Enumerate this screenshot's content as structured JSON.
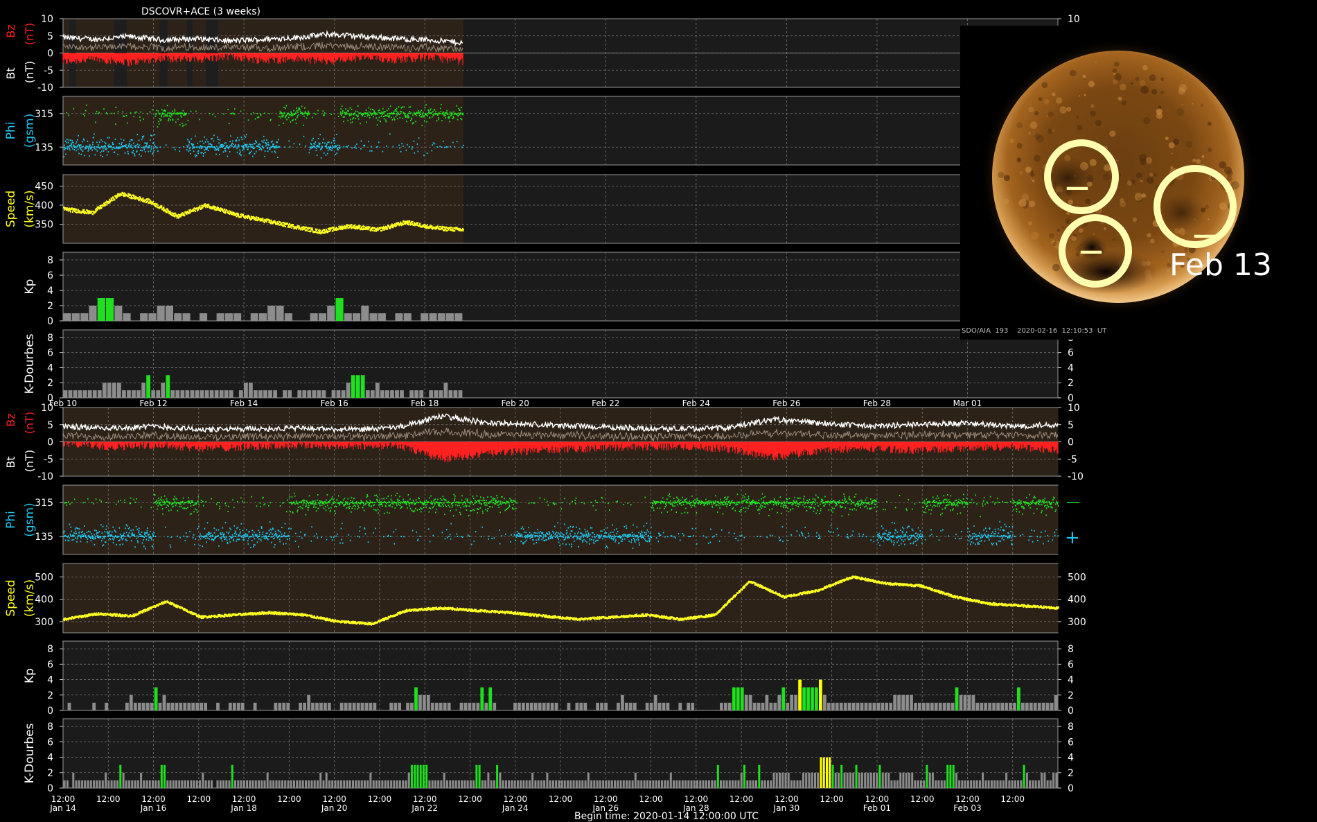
{
  "chart_data": [
    {
      "type": "line",
      "panel": "upper",
      "title": "DSCOVR+ACE (3 weeks)",
      "x_tick_labels": [
        "Feb 10",
        "Feb 12",
        "Feb 14",
        "Feb 16",
        "Feb 18",
        "Feb 20",
        "Feb 22",
        "Feb 24",
        "Feb 26",
        "Feb 28",
        "Mar 01"
      ],
      "x_range": [
        "2020-02-09",
        "2020-03-02"
      ],
      "data_end": "2020-02-16",
      "series_colors": {
        "bt": "#ffffff",
        "bz": "#ff2020",
        "phi_plus": "#1ec8f0",
        "phi_minus": "#20e020",
        "speed": "#ffff20",
        "kp_quiet": "#8c8c8c",
        "kp_active": "#1ee01e",
        "kp_storm": "#ffff00"
      },
      "bz_bt": {
        "ylabel_top": "Bz",
        "ylabel_top_unit": "(nT)",
        "ylabel_bottom": "Bt",
        "ylabel_bottom_unit": "(nT)",
        "ylim": [
          -10,
          10
        ],
        "yticks": [
          "10",
          "5",
          "0",
          "-5",
          "-10"
        ],
        "bt_daily": [
          4.5,
          4.0,
          4.8,
          3.8,
          4.2,
          3.5,
          4.0,
          4.5,
          5.5,
          4.8,
          4.2,
          3.8,
          3.0
        ],
        "bz_daily": [
          -2.5,
          -1.8,
          -2.8,
          -1.5,
          -2.0,
          -1.0,
          -2.2,
          -1.8,
          -2.5,
          -1.5,
          -2.0,
          -1.2,
          -2.6
        ]
      },
      "phi": {
        "ylabel": "Phi",
        "ylabel_unit": "(gsm)",
        "yticks": [
          "315",
          "135"
        ],
        "right_symbols": [
          "—",
          "+"
        ],
        "sector_sequence": [
          "plus",
          "plus",
          "plus",
          "minus",
          "plus",
          "plus",
          "plus",
          "minus",
          "plus",
          "minus",
          "minus",
          "minus",
          "minus"
        ]
      },
      "speed": {
        "ylabel": "Speed",
        "ylabel_unit": "(km/s)",
        "yticks": [
          "450",
          "400",
          "350"
        ],
        "ylim": [
          300,
          480
        ],
        "daily_values": [
          390,
          380,
          430,
          410,
          370,
          400,
          375,
          360,
          345,
          330,
          345,
          335,
          355,
          340,
          335
        ]
      },
      "kp": {
        "ylabel": "Kp",
        "ylim": [
          0,
          9
        ],
        "yticks": [
          "8",
          "6",
          "4",
          "2",
          "0"
        ],
        "values": [
          1,
          1,
          1,
          2,
          3,
          3,
          2,
          1,
          0,
          1,
          1,
          2,
          2,
          1,
          1,
          0,
          1,
          0,
          1,
          1,
          1,
          0,
          1,
          1,
          2,
          2,
          1,
          0,
          0,
          1,
          1,
          2,
          3,
          1,
          1,
          2,
          1,
          1,
          0,
          1,
          1,
          0,
          1,
          1,
          1,
          1,
          1
        ]
      },
      "kdourbes": {
        "ylabel": "K-Dourbes",
        "ylim": [
          0,
          9
        ],
        "yticks": [
          "8",
          "6",
          "4",
          "2",
          "0"
        ],
        "values": [
          1,
          1,
          1,
          1,
          1,
          1,
          1,
          1,
          2,
          2,
          2,
          2,
          1,
          1,
          1,
          1,
          2,
          3,
          1,
          1,
          2,
          3,
          1,
          1,
          1,
          1,
          1,
          1,
          1,
          1,
          1,
          1,
          1,
          1,
          1,
          0,
          1,
          2,
          2,
          1,
          1,
          1,
          1,
          1,
          0,
          1,
          1,
          0,
          1,
          1,
          1,
          1,
          1,
          1,
          0,
          1,
          1,
          1,
          2,
          3,
          3,
          3,
          1,
          1,
          2,
          1,
          1,
          1,
          1,
          1,
          0,
          1,
          1,
          1,
          0,
          1,
          1,
          1,
          2,
          1,
          1,
          1
        ]
      }
    },
    {
      "type": "line",
      "panel": "lower",
      "x_tick_times": [
        "12:00",
        "12:00",
        "12:00",
        "12:00",
        "12:00",
        "12:00",
        "12:00",
        "12:00",
        "12:00",
        "12:00",
        "12:00",
        "12:00",
        "12:00",
        "12:00",
        "12:00",
        "12:00",
        "12:00",
        "12:00",
        "12:00",
        "12:00",
        "12:00",
        "12:00"
      ],
      "x_tick_dates": [
        "Jan 14",
        "",
        "Jan 16",
        "",
        "Jan 18",
        "",
        "Jan 20",
        "",
        "Jan 22",
        "",
        "Jan 24",
        "",
        "Jan 26",
        "",
        "Jan 28",
        "",
        "Jan 30",
        "",
        "Feb 01",
        "",
        "Feb 03",
        ""
      ],
      "x_range": [
        "2020-01-14 12:00",
        "2020-02-04 12:00"
      ],
      "xlabel": "Begin time: 2020-01-14 12:00:00 UTC",
      "bz_bt": {
        "ylabel_top": "Bz",
        "ylabel_top_unit": "(nT)",
        "ylabel_bottom": "Bt",
        "ylabel_bottom_unit": "(nT)",
        "ylim": [
          -10,
          10
        ],
        "yticks": [
          "10",
          "5",
          "0",
          "-5",
          "-10"
        ],
        "bt_daily": [
          4.5,
          4.0,
          4.5,
          3.5,
          3.8,
          4.0,
          3.5,
          4.0,
          7.5,
          5.5,
          5.0,
          4.5,
          4.0,
          3.8,
          4.0,
          6.5,
          5.5,
          4.5,
          5.0,
          5.5,
          4.5,
          5.0
        ],
        "bz_daily": [
          -0.5,
          -1.5,
          -1.0,
          -2.0,
          -1.5,
          -1.0,
          -1.5,
          -1.0,
          -5.0,
          -3.5,
          -2.5,
          -2.0,
          -1.5,
          -1.5,
          -2.0,
          -4.5,
          -2.5,
          -2.0,
          -2.5,
          -2.0,
          -1.5,
          -2.5
        ]
      },
      "phi": {
        "ylabel": "Phi",
        "ylabel_unit": "(gsm)",
        "yticks": [
          "315",
          "135"
        ],
        "right_symbols": [
          "—",
          "+"
        ],
        "sector_sequence": [
          "plus",
          "plus",
          "minus",
          "plus",
          "plus",
          "minus",
          "minus",
          "minus",
          "minus",
          "minus",
          "plus",
          "plus",
          "plus",
          "minus",
          "minus",
          "minus",
          "minus",
          "minus",
          "plus",
          "minus",
          "plus",
          "minus"
        ]
      },
      "speed": {
        "ylabel": "Speed",
        "ylabel_unit": "(km/s)",
        "yticks": [
          "500",
          "400",
          "300"
        ],
        "ylim": [
          250,
          560
        ],
        "daily_values": [
          310,
          335,
          325,
          390,
          320,
          330,
          340,
          330,
          300,
          290,
          350,
          360,
          350,
          340,
          325,
          310,
          320,
          330,
          310,
          330,
          480,
          410,
          440,
          500,
          470,
          460,
          410,
          380,
          370,
          360
        ],
        "daily_values_note": ""
      },
      "kp": {
        "ylabel": "Kp",
        "ylim": [
          0,
          9
        ],
        "yticks": [
          "8",
          "6",
          "4",
          "2",
          "0"
        ],
        "values": [
          0,
          1,
          0,
          0,
          0,
          0,
          0,
          1,
          0,
          0,
          1,
          0,
          0,
          0,
          0,
          1,
          2,
          1,
          1,
          1,
          1,
          1,
          3,
          1,
          2,
          1,
          1,
          1,
          1,
          1,
          1,
          1,
          1,
          1,
          1,
          0,
          0,
          1,
          0,
          0,
          1,
          1,
          1,
          1,
          0,
          0,
          1,
          0,
          0,
          0,
          0,
          1,
          1,
          1,
          1,
          0,
          0,
          1,
          1,
          2,
          1,
          1,
          1,
          1,
          1,
          0,
          0,
          1,
          1,
          1,
          1,
          1,
          1,
          1,
          1,
          1,
          0,
          0,
          0,
          1,
          1,
          1,
          0,
          1,
          1,
          3,
          2,
          2,
          2,
          1,
          1,
          1,
          1,
          1,
          0,
          0,
          1,
          1,
          1,
          1,
          1,
          3,
          1,
          3,
          1,
          0,
          0,
          0,
          0,
          1,
          1,
          1,
          1,
          1,
          1,
          1,
          1,
          1,
          1,
          1,
          0,
          0,
          1,
          0,
          1,
          1,
          1,
          0,
          0,
          1,
          1,
          1,
          0,
          0,
          1,
          2,
          1,
          1,
          1,
          0,
          0,
          1,
          1,
          2,
          1,
          1,
          1,
          0,
          0,
          1,
          0,
          1,
          1,
          0,
          0,
          0,
          0,
          0,
          0,
          1,
          1,
          1,
          3,
          3,
          3,
          2,
          2,
          1,
          1,
          1,
          2,
          1,
          1,
          2,
          3,
          1,
          2,
          2,
          4,
          3,
          3,
          3,
          3,
          4,
          2,
          1,
          1,
          1,
          1,
          1,
          1,
          1,
          1,
          1,
          1,
          1,
          1,
          1,
          1,
          1,
          1,
          2,
          2,
          2,
          2,
          2,
          1,
          1,
          1,
          1,
          1,
          1,
          1,
          1,
          1,
          1,
          3,
          2,
          2,
          2,
          2,
          1,
          1,
          1,
          1,
          1,
          1,
          1,
          1,
          1,
          1,
          3,
          1,
          1,
          1,
          1,
          1,
          1,
          1,
          1,
          2
        ]
      },
      "kdourbes": {
        "ylabel": "K-Dourbes",
        "ylim": [
          0,
          9
        ],
        "yticks": [
          "8",
          "6",
          "4",
          "2",
          "0"
        ],
        "values": [
          1,
          1,
          0,
          2,
          1,
          1,
          1,
          1,
          1,
          1,
          1,
          1,
          1,
          1,
          2,
          1,
          1,
          1,
          1,
          3,
          2,
          1,
          1,
          1,
          1,
          1,
          2,
          1,
          1,
          1,
          1,
          1,
          1,
          3,
          3,
          1,
          1,
          1,
          1,
          1,
          1,
          1,
          1,
          1,
          1,
          1,
          1,
          2,
          1,
          1,
          1,
          0,
          1,
          1,
          1,
          1,
          1,
          3,
          1,
          1,
          1,
          1,
          1,
          1,
          1,
          1,
          1,
          1,
          1,
          2,
          1,
          1,
          1,
          1,
          1,
          1,
          1,
          1,
          1,
          1,
          1,
          1,
          1,
          1,
          1,
          1,
          1,
          2,
          1,
          2,
          1,
          1,
          1,
          1,
          1,
          1,
          1,
          1,
          1,
          1,
          1,
          1,
          1,
          1,
          2,
          1,
          1,
          1,
          1,
          1,
          1,
          1,
          1,
          1,
          1,
          1,
          1,
          2,
          3,
          3,
          3,
          3,
          3,
          3,
          1,
          1,
          1,
          1,
          1,
          2,
          1,
          1,
          1,
          1,
          1,
          1,
          1,
          1,
          1,
          1,
          3,
          3,
          1,
          1,
          2,
          1,
          1,
          3,
          2,
          1,
          1,
          1,
          1,
          1,
          1,
          1,
          1,
          1,
          1,
          2,
          1,
          1,
          1,
          1,
          2,
          1,
          1,
          1,
          1,
          1,
          1,
          1,
          1,
          1,
          1,
          1,
          1,
          1,
          2,
          1,
          1,
          1,
          1,
          1,
          1,
          1,
          1,
          1,
          1,
          1,
          1,
          1,
          1,
          1,
          2,
          1,
          1,
          1,
          1,
          1,
          1,
          1,
          1,
          1,
          1,
          1,
          2,
          1,
          1,
          1,
          1,
          1,
          1,
          1,
          1,
          1,
          1,
          1,
          1,
          1,
          1,
          1,
          3,
          1,
          1,
          1,
          1,
          1,
          1,
          1,
          2,
          3,
          1,
          1,
          1,
          1,
          3,
          1,
          1,
          1,
          1,
          2,
          2,
          2,
          2,
          2,
          2,
          1,
          1,
          1,
          1,
          2,
          2,
          2,
          2,
          2,
          2,
          4,
          4,
          4,
          4,
          3,
          2,
          2,
          3,
          2,
          2,
          2,
          2,
          3,
          2,
          2,
          2,
          2,
          2,
          2,
          2,
          3,
          2,
          2,
          2,
          1,
          1,
          1,
          2,
          2,
          2,
          2,
          2,
          1,
          1,
          1,
          1,
          3,
          2,
          2,
          1,
          1,
          1,
          1,
          3,
          3,
          3,
          2,
          1,
          1,
          1,
          1,
          1,
          1,
          1,
          1,
          2,
          1,
          1,
          1,
          1,
          1,
          1,
          1,
          2,
          1,
          1,
          1,
          1,
          1,
          3,
          2,
          1,
          1,
          1,
          1,
          2,
          2,
          1,
          1,
          2,
          2
        ]
      }
    }
  ],
  "inset": {
    "caption": "SDO/AIA  193    2020-02-16  12:10:53  UT",
    "date_label": "Feb 13",
    "circle_symbols": [
      "—",
      "—",
      "—"
    ]
  }
}
